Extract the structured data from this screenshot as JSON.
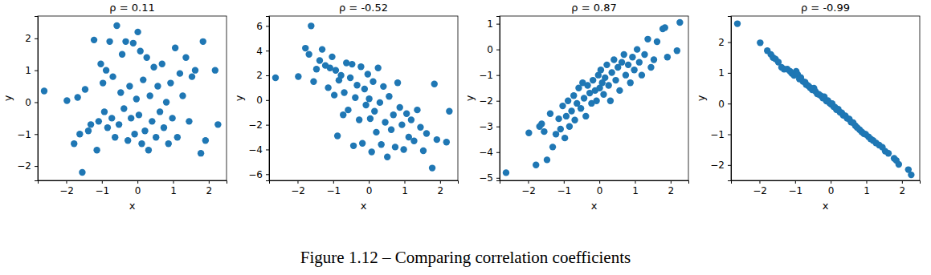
{
  "caption": "Figure 1.12 – Comparing correlation coefficients",
  "chart_data": [
    {
      "type": "scatter",
      "title": "ρ = 0.11",
      "x_label": "x",
      "y_label": "y",
      "color": "#1f77b4",
      "marker": "circle",
      "xlim": [
        -2.8,
        2.5
      ],
      "ylim": [
        -2.45,
        2.7
      ],
      "xticks": [
        {
          "value": -2,
          "label": "−2"
        },
        {
          "value": -1,
          "label": "−1"
        },
        0,
        1,
        2
      ],
      "yticks": [
        {
          "value": -2,
          "label": "−2"
        },
        {
          "value": -1,
          "label": "−1"
        },
        0,
        1,
        2
      ],
      "x": [
        -2.62,
        -1.98,
        -1.78,
        -1.68,
        -1.62,
        -1.55,
        -1.47,
        -1.38,
        -1.31,
        -1.22,
        -1.14,
        -1.09,
        -1.03,
        -0.97,
        -0.93,
        -0.88,
        -0.84,
        -0.78,
        -0.72,
        -0.69,
        -0.63,
        -0.58,
        -0.52,
        -0.47,
        -0.43,
        -0.38,
        -0.33,
        -0.27,
        -0.22,
        -0.18,
        -0.12,
        -0.08,
        -0.03,
        0.01,
        0.04,
        0.08,
        0.12,
        0.16,
        0.21,
        0.26,
        0.31,
        0.35,
        0.41,
        0.46,
        0.52,
        0.57,
        0.63,
        0.69,
        0.74,
        0.81,
        0.87,
        0.93,
        0.98,
        1.06,
        1.12,
        1.19,
        1.27,
        1.36,
        1.45,
        1.53,
        1.62,
        1.78,
        1.84,
        1.91,
        2.18,
        2.26
      ],
      "values": [
        0.35,
        0.05,
        -1.3,
        0.15,
        -1.0,
        -2.2,
        0.4,
        -0.9,
        -0.7,
        1.95,
        -1.5,
        -0.6,
        1.2,
        0.6,
        -0.3,
        1.0,
        -0.8,
        1.9,
        -0.5,
        0.8,
        -1.1,
        2.4,
        -0.7,
        0.3,
        1.5,
        -0.2,
        1.9,
        -1.2,
        0.5,
        -0.5,
        1.85,
        -1.0,
        0.1,
        2.2,
        -0.4,
        1.6,
        -1.3,
        0.7,
        -0.9,
        1.4,
        -1.5,
        0.2,
        -0.6,
        1.1,
        -1.1,
        0.5,
        -0.3,
        1.2,
        -0.8,
        0.0,
        -1.3,
        0.6,
        -0.5,
        1.7,
        -1.1,
        0.9,
        0.2,
        1.4,
        -0.6,
        0.8,
        1.0,
        -1.6,
        1.9,
        -1.2,
        1.0,
        -0.7
      ]
    },
    {
      "type": "scatter",
      "title": "ρ = -0.52",
      "x_label": "x",
      "y_label": "y",
      "color": "#1f77b4",
      "marker": "circle",
      "xlim": [
        -2.8,
        2.5
      ],
      "ylim": [
        -6.5,
        6.8
      ],
      "xticks": [
        {
          "value": -2,
          "label": "−2"
        },
        {
          "value": -1,
          "label": "−1"
        },
        0,
        1,
        2
      ],
      "yticks": [
        {
          "value": -6,
          "label": "−6"
        },
        {
          "value": -4,
          "label": "−4"
        },
        {
          "value": -2,
          "label": "−2"
        },
        0,
        2,
        4,
        6
      ],
      "x": [
        -2.62,
        -1.98,
        -1.78,
        -1.68,
        -1.62,
        -1.55,
        -1.47,
        -1.38,
        -1.31,
        -1.22,
        -1.14,
        -1.09,
        -1.03,
        -0.97,
        -0.93,
        -0.88,
        -0.84,
        -0.78,
        -0.72,
        -0.69,
        -0.63,
        -0.58,
        -0.52,
        -0.47,
        -0.43,
        -0.38,
        -0.33,
        -0.27,
        -0.22,
        -0.18,
        -0.12,
        -0.08,
        -0.03,
        0.01,
        0.04,
        0.08,
        0.12,
        0.16,
        0.21,
        0.26,
        0.31,
        0.35,
        0.41,
        0.46,
        0.52,
        0.57,
        0.63,
        0.69,
        0.74,
        0.81,
        0.87,
        0.93,
        0.98,
        1.06,
        1.12,
        1.19,
        1.27,
        1.36,
        1.45,
        1.53,
        1.62,
        1.78,
        1.84,
        1.91,
        2.18,
        2.26
      ],
      "values": [
        1.8,
        1.9,
        4.2,
        3.7,
        6.0,
        1.5,
        2.5,
        3.2,
        4.1,
        2.8,
        1.0,
        2.6,
        3.5,
        0.4,
        2.4,
        -2.9,
        1.6,
        2.0,
        -1.2,
        0.6,
        3.0,
        -0.8,
        1.8,
        2.9,
        -3.7,
        0.2,
        1.2,
        -1.6,
        2.7,
        -3.5,
        0.9,
        -0.4,
        2.1,
        0.1,
        -1.5,
        -4.2,
        1.5,
        -0.9,
        -2.6,
        2.6,
        -0.2,
        -3.6,
        1.1,
        -1.8,
        -4.6,
        0.3,
        -2.4,
        -1.2,
        -3.8,
        1.4,
        -0.6,
        -2.0,
        -4.0,
        -1.1,
        -3.0,
        -1.6,
        -3.3,
        -0.8,
        -2.2,
        -4.1,
        -2.7,
        -5.5,
        1.3,
        -3.2,
        -3.4,
        -0.9
      ]
    },
    {
      "type": "scatter",
      "title": "ρ = 0.87",
      "x_label": "x",
      "y_label": "y",
      "color": "#1f77b4",
      "marker": "circle",
      "xlim": [
        -2.8,
        2.5
      ],
      "ylim": [
        -5.1,
        1.3
      ],
      "xticks": [
        {
          "value": -2,
          "label": "−2"
        },
        {
          "value": -1,
          "label": "−1"
        },
        0,
        1,
        2
      ],
      "yticks": [
        {
          "value": -5,
          "label": "−5"
        },
        {
          "value": -4,
          "label": "−4"
        },
        {
          "value": -3,
          "label": "−3"
        },
        {
          "value": -2,
          "label": "−2"
        },
        {
          "value": -1,
          "label": "−1"
        },
        0,
        1
      ],
      "x": [
        -2.62,
        -1.98,
        -1.78,
        -1.68,
        -1.62,
        -1.55,
        -1.47,
        -1.38,
        -1.31,
        -1.22,
        -1.14,
        -1.09,
        -1.03,
        -0.97,
        -0.93,
        -0.88,
        -0.84,
        -0.78,
        -0.72,
        -0.69,
        -0.63,
        -0.58,
        -0.52,
        -0.47,
        -0.43,
        -0.38,
        -0.33,
        -0.27,
        -0.22,
        -0.18,
        -0.12,
        -0.08,
        -0.03,
        0.01,
        0.04,
        0.08,
        0.12,
        0.16,
        0.21,
        0.26,
        0.31,
        0.35,
        0.41,
        0.46,
        0.52,
        0.57,
        0.63,
        0.69,
        0.74,
        0.81,
        0.87,
        0.93,
        0.98,
        1.06,
        1.12,
        1.19,
        1.27,
        1.36,
        1.45,
        1.53,
        1.62,
        1.78,
        1.84,
        1.91,
        2.18,
        2.26
      ],
      "values": [
        -4.8,
        -3.25,
        -4.5,
        -3.0,
        -2.9,
        -3.2,
        -4.3,
        -2.5,
        -3.8,
        -3.3,
        -2.7,
        -3.1,
        -2.2,
        -3.45,
        -2.6,
        -2.0,
        -3.0,
        -2.4,
        -1.8,
        -2.75,
        -2.1,
        -1.5,
        -2.3,
        -1.3,
        -1.9,
        -2.6,
        -1.4,
        -1.7,
        -2.1,
        -1.2,
        -1.6,
        -2.0,
        -1.0,
        -1.5,
        -0.8,
        -1.3,
        -1.75,
        -1.1,
        -0.6,
        -1.4,
        -2.0,
        -0.9,
        -0.4,
        -1.2,
        -0.7,
        -1.6,
        -0.5,
        -0.2,
        -1.0,
        -0.6,
        -1.3,
        -0.3,
        -0.8,
        0.0,
        -0.5,
        -1.0,
        -0.2,
        0.4,
        -0.7,
        -0.4,
        0.3,
        0.8,
        0.85,
        -0.3,
        -0.05,
        1.05
      ]
    },
    {
      "type": "scatter",
      "title": "ρ = -0.99",
      "x_label": "x",
      "y_label": "y",
      "color": "#1f77b4",
      "marker": "circle",
      "xlim": [
        -2.8,
        2.5
      ],
      "ylim": [
        -2.5,
        2.85
      ],
      "xticks": [
        {
          "value": -2,
          "label": "−2"
        },
        {
          "value": -1,
          "label": "−1"
        },
        0,
        1,
        2
      ],
      "yticks": [
        {
          "value": -2,
          "label": "−2"
        },
        {
          "value": -1,
          "label": "−1"
        },
        0,
        1,
        2
      ],
      "x": [
        -2.62,
        -1.98,
        -1.78,
        -1.68,
        -1.62,
        -1.55,
        -1.47,
        -1.38,
        -1.31,
        -1.22,
        -1.14,
        -1.09,
        -1.03,
        -0.97,
        -0.93,
        -0.88,
        -0.84,
        -0.78,
        -0.72,
        -0.69,
        -0.63,
        -0.58,
        -0.52,
        -0.47,
        -0.43,
        -0.38,
        -0.33,
        -0.27,
        -0.22,
        -0.18,
        -0.12,
        -0.08,
        -0.03,
        0.01,
        0.04,
        0.08,
        0.12,
        0.16,
        0.21,
        0.26,
        0.31,
        0.35,
        0.41,
        0.46,
        0.52,
        0.57,
        0.63,
        0.69,
        0.74,
        0.81,
        0.87,
        0.93,
        0.98,
        1.06,
        1.12,
        1.19,
        1.27,
        1.36,
        1.45,
        1.53,
        1.62,
        1.78,
        1.84,
        1.91,
        2.18,
        2.26
      ],
      "values": [
        2.6,
        1.98,
        1.72,
        1.6,
        1.5,
        1.45,
        1.35,
        1.18,
        1.12,
        1.12,
        1.05,
        0.98,
        0.92,
        1.05,
        0.95,
        0.8,
        0.85,
        0.72,
        0.7,
        0.62,
        0.58,
        0.52,
        0.45,
        0.5,
        0.4,
        0.32,
        0.3,
        0.25,
        0.18,
        0.22,
        0.08,
        0.1,
        0.02,
        -0.02,
        0.0,
        -0.1,
        -0.12,
        -0.2,
        -0.18,
        -0.28,
        -0.3,
        -0.38,
        -0.4,
        -0.48,
        -0.5,
        -0.6,
        -0.62,
        -0.72,
        -0.78,
        -0.85,
        -0.92,
        -0.98,
        -1.0,
        -1.08,
        -1.15,
        -1.2,
        -1.28,
        -1.35,
        -1.42,
        -1.55,
        -1.62,
        -1.78,
        -1.85,
        -1.98,
        -2.15,
        -2.32
      ]
    }
  ]
}
